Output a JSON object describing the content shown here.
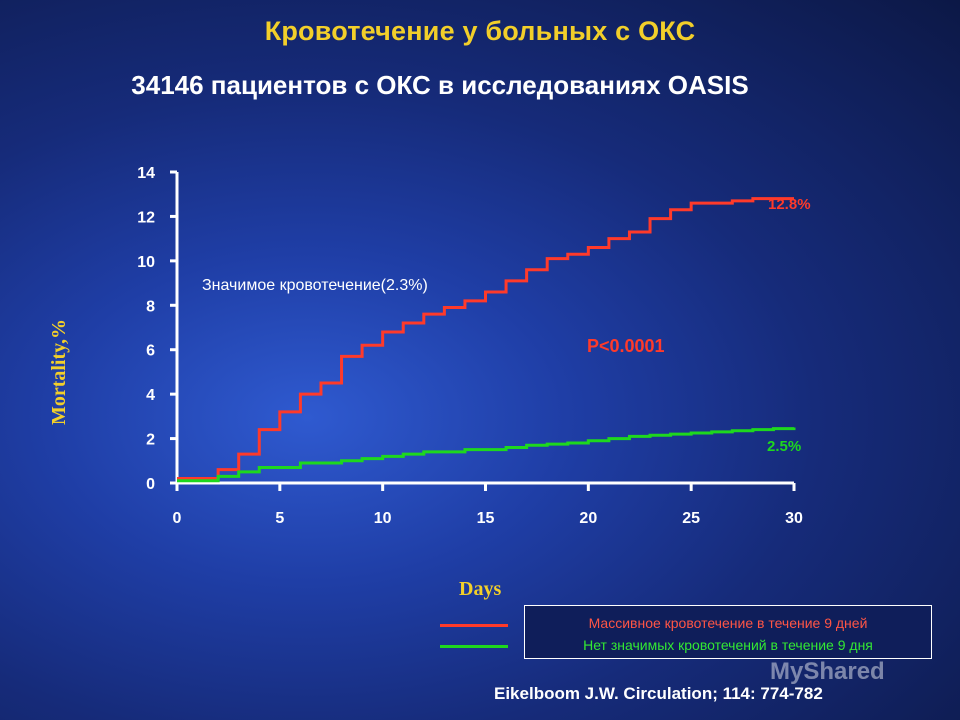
{
  "title": "Кровотечение у больных с ОКС",
  "subtitle": "34146 пациентов с ОКС в исследованиях OASIS",
  "watermark": "MyShared",
  "citation": "Eikelboom J.W. Circulation; 114: 774-782",
  "colors": {
    "major_bleeding": "#ff3a2a",
    "no_bleeding": "#1ed81e",
    "title": "#f2cf2a"
  },
  "legend": {
    "major_bleeding": "Массивное кровотечение в течение 9 дней",
    "no_bleeding": "Нет значимых кровотечений в течение 9 дня"
  },
  "chart_data": {
    "type": "line",
    "title": "",
    "xlabel": "Days",
    "ylabel": "Mortality,%",
    "xlim": [
      0,
      30
    ],
    "ylim": [
      0,
      14
    ],
    "x_ticks": [
      0,
      5,
      10,
      15,
      20,
      25,
      30
    ],
    "y_ticks": [
      0,
      2,
      4,
      6,
      8,
      10,
      12,
      14
    ],
    "grid": false,
    "step": true,
    "series": [
      {
        "name": "Массивное кровотечение в течение 9 дней",
        "color": "#ff3a2a",
        "end_label": "12.8%",
        "x": [
          0,
          2,
          3,
          4,
          5,
          6,
          7,
          8,
          9,
          10,
          11,
          12,
          13,
          14,
          15,
          16,
          17,
          18,
          19,
          20,
          21,
          22,
          23,
          24,
          25,
          26,
          27,
          28,
          29,
          30
        ],
        "y": [
          0.2,
          0.6,
          1.3,
          2.4,
          3.2,
          4.0,
          4.5,
          5.7,
          6.2,
          6.8,
          7.2,
          7.6,
          7.9,
          8.2,
          8.6,
          9.1,
          9.6,
          10.1,
          10.3,
          10.6,
          11.0,
          11.3,
          11.9,
          12.3,
          12.6,
          12.6,
          12.7,
          12.8,
          12.8,
          12.8
        ]
      },
      {
        "name": "Нет значимых кровотечений в течение 9 дня",
        "color": "#1ed81e",
        "end_label": "2.5%",
        "x": [
          0,
          2,
          3,
          4,
          6,
          8,
          9,
          10,
          11,
          12,
          14,
          16,
          17,
          18,
          19,
          20,
          21,
          22,
          23,
          24,
          25,
          26,
          27,
          28,
          29,
          30
        ],
        "y": [
          0.1,
          0.3,
          0.5,
          0.7,
          0.9,
          1.0,
          1.1,
          1.2,
          1.3,
          1.4,
          1.5,
          1.6,
          1.7,
          1.75,
          1.8,
          1.9,
          2.0,
          2.1,
          2.15,
          2.2,
          2.25,
          2.3,
          2.35,
          2.4,
          2.45,
          2.5
        ]
      }
    ],
    "annotations": [
      "Значимое кровотечение(2.3%)",
      "P<0.0001"
    ]
  }
}
